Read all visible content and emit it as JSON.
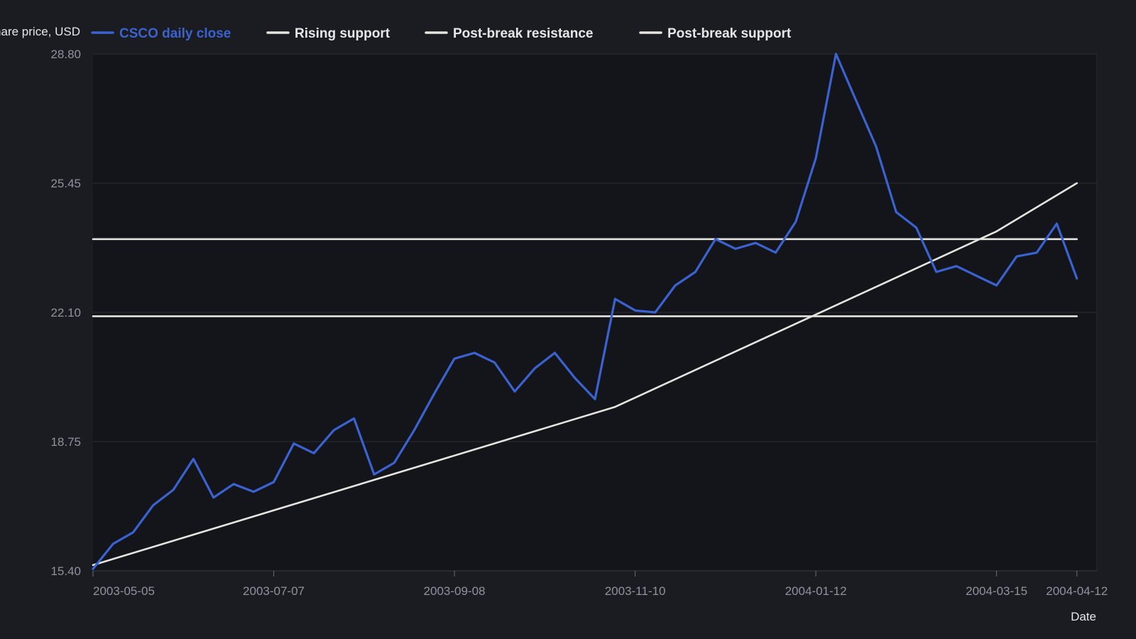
{
  "chart_data": {
    "type": "line",
    "xlabel": "Date",
    "ylabel": "Share price, USD",
    "ylim": [
      15.4,
      28.8
    ],
    "yticks": [
      "15.40",
      "18.75",
      "22.10",
      "25.45",
      "28.80"
    ],
    "xlim": [
      "2003-05-05",
      "2004-04-19"
    ],
    "xticks": [
      "2003-05-05",
      "2003-07-07",
      "2003-09-08",
      "2003-11-10",
      "2004-01-12",
      "2004-03-15",
      "2004-04-12"
    ],
    "grid": true,
    "legend_position": "top",
    "series": [
      {
        "name": "CSCO daily close",
        "color": "#3a63d1",
        "points": [
          [
            "2003-05-05",
            15.45
          ],
          [
            "2003-05-12",
            16.1
          ],
          [
            "2003-05-19",
            16.4
          ],
          [
            "2003-05-26",
            17.1
          ],
          [
            "2003-06-02",
            17.5
          ],
          [
            "2003-06-09",
            18.3
          ],
          [
            "2003-06-16",
            17.3
          ],
          [
            "2003-06-23",
            17.65
          ],
          [
            "2003-06-30",
            17.45
          ],
          [
            "2003-07-07",
            17.7
          ],
          [
            "2003-07-14",
            18.7
          ],
          [
            "2003-07-21",
            18.45
          ],
          [
            "2003-07-28",
            19.05
          ],
          [
            "2003-08-04",
            19.35
          ],
          [
            "2003-08-11",
            17.9
          ],
          [
            "2003-08-18",
            18.2
          ],
          [
            "2003-08-25",
            19.05
          ],
          [
            "2003-09-01",
            20.0
          ],
          [
            "2003-09-08",
            20.9
          ],
          [
            "2003-09-15",
            21.05
          ],
          [
            "2003-09-22",
            20.8
          ],
          [
            "2003-09-29",
            20.05
          ],
          [
            "2003-10-06",
            20.65
          ],
          [
            "2003-10-13",
            21.05
          ],
          [
            "2003-10-20",
            20.4
          ],
          [
            "2003-10-27",
            19.85
          ],
          [
            "2003-11-03",
            22.45
          ],
          [
            "2003-11-10",
            22.15
          ],
          [
            "2003-11-17",
            22.1
          ],
          [
            "2003-11-24",
            22.8
          ],
          [
            "2003-12-01",
            23.15
          ],
          [
            "2003-12-08",
            24.0
          ],
          [
            "2003-12-15",
            23.75
          ],
          [
            "2003-12-22",
            23.9
          ],
          [
            "2003-12-29",
            23.65
          ],
          [
            "2004-01-05",
            24.45
          ],
          [
            "2004-01-12",
            26.1
          ],
          [
            "2004-01-19",
            28.8
          ],
          [
            "2004-01-26",
            27.6
          ],
          [
            "2004-02-02",
            26.4
          ],
          [
            "2004-02-09",
            24.7
          ],
          [
            "2004-02-16",
            24.3
          ],
          [
            "2004-02-23",
            23.15
          ],
          [
            "2004-03-01",
            23.3
          ],
          [
            "2004-03-08",
            23.05
          ],
          [
            "2004-03-15",
            22.8
          ],
          [
            "2004-03-22",
            23.55
          ],
          [
            "2004-03-29",
            23.65
          ],
          [
            "2004-04-05",
            24.4
          ],
          [
            "2004-04-12",
            22.98
          ]
        ]
      },
      {
        "name": "Rising support",
        "color": "#e6e4df",
        "points": [
          [
            "2003-05-05",
            15.55
          ],
          [
            "2003-11-03",
            19.65
          ],
          [
            "2004-03-15",
            24.2
          ],
          [
            "2004-04-12",
            25.45
          ]
        ]
      },
      {
        "name": "Post-break resistance",
        "color": "#e6e4df",
        "points": [
          [
            "2003-05-05",
            24.0
          ],
          [
            "2004-04-12",
            24.0
          ]
        ]
      },
      {
        "name": "Post-break support",
        "color": "#e6e4df",
        "points": [
          [
            "2003-05-05",
            22.0
          ],
          [
            "2004-04-12",
            22.0
          ]
        ]
      }
    ]
  },
  "colors": {
    "background": "#1a1c21",
    "plot_background": "#14151a",
    "grid": "#2a2d33",
    "tick_text": "#8f939b",
    "axis_title": "#e6e7ea"
  }
}
